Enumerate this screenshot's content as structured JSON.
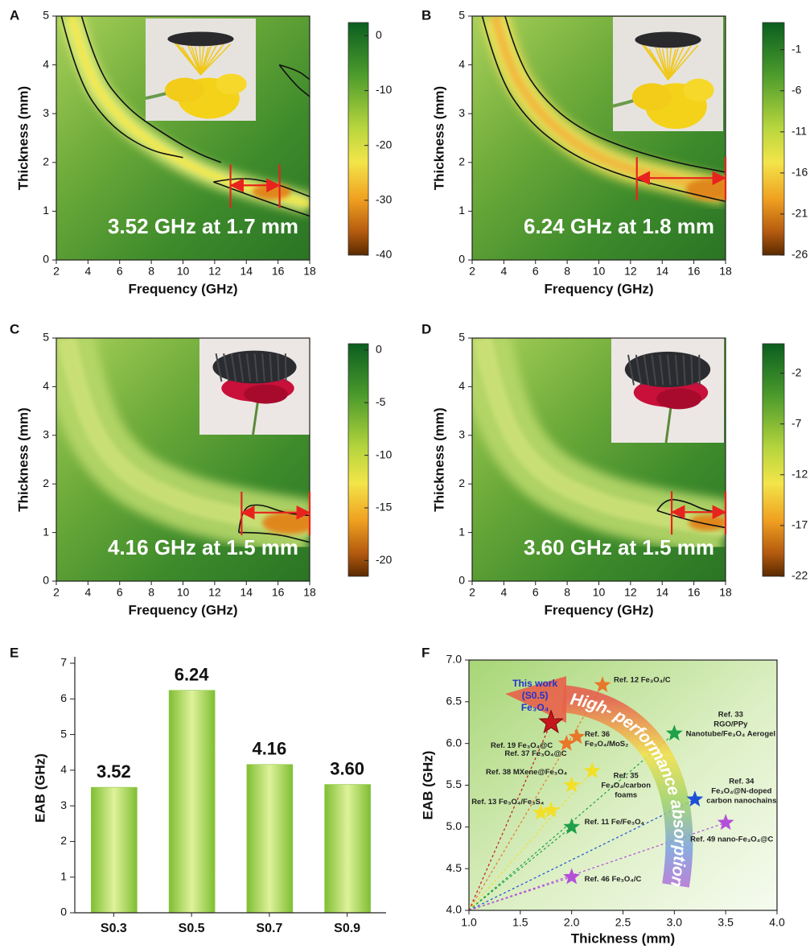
{
  "chart_data": [
    {
      "type": "heatmap",
      "panel": "A",
      "annotation": "3.52 GHz at 1.7 mm",
      "xlabel": "Frequency (GHz)",
      "ylabel": "Thickness (mm)",
      "xlim": [
        2,
        18
      ],
      "ylim": [
        0,
        5
      ],
      "xticks": [
        2,
        4,
        6,
        8,
        10,
        12,
        14,
        16,
        18
      ],
      "yticks": [
        0,
        1,
        2,
        3,
        4,
        5
      ],
      "colorbar": {
        "lim": [
          2.4,
          -40
        ],
        "ticks": [
          0,
          -10,
          -20,
          -30,
          -40
        ]
      },
      "arrow": {
        "x": [
          13.0,
          16.1
        ],
        "y": 1.53
      }
    },
    {
      "type": "heatmap",
      "panel": "B",
      "annotation": "6.24 GHz at 1.8 mm",
      "xlabel": "Frequency (GHz)",
      "ylabel": "Thickness (mm)",
      "xlim": [
        2,
        18
      ],
      "ylim": [
        0,
        5
      ],
      "xticks": [
        2,
        4,
        6,
        8,
        10,
        12,
        14,
        16,
        18
      ],
      "yticks": [
        0,
        1,
        2,
        3,
        4,
        5
      ],
      "colorbar": {
        "lim": [
          2.3,
          -26
        ],
        "ticks": [
          -1,
          -6,
          -11,
          -16,
          -21,
          -26
        ]
      },
      "arrow": {
        "x": [
          12.4,
          18
        ],
        "y": 1.68
      }
    },
    {
      "type": "heatmap",
      "panel": "C",
      "annotation": "4.16 GHz at 1.5 mm",
      "xlabel": "Frequency (GHz)",
      "ylabel": "Thickness (mm)",
      "xlim": [
        2,
        18
      ],
      "ylim": [
        0,
        5
      ],
      "xticks": [
        2,
        4,
        6,
        8,
        10,
        12,
        14,
        16,
        18
      ],
      "yticks": [
        0,
        1,
        2,
        3,
        4,
        5
      ],
      "colorbar": {
        "lim": [
          0.6,
          -21.5
        ],
        "ticks": [
          0,
          -5,
          -10,
          -15,
          -20
        ]
      },
      "arrow": {
        "x": [
          13.7,
          18
        ],
        "y": 1.41
      }
    },
    {
      "type": "heatmap",
      "panel": "D",
      "annotation": "3.60 GHz at 1.5 mm",
      "xlabel": "Frequency (GHz)",
      "ylabel": "Thickness (mm)",
      "xlim": [
        2,
        18
      ],
      "ylim": [
        0,
        5
      ],
      "xticks": [
        2,
        4,
        6,
        8,
        10,
        12,
        14,
        16,
        18
      ],
      "yticks": [
        0,
        1,
        2,
        3,
        4,
        5
      ],
      "colorbar": {
        "lim": [
          0.9,
          -22
        ],
        "ticks": [
          -2,
          -7,
          -12,
          -17,
          -22
        ]
      },
      "arrow": {
        "x": [
          14.6,
          18
        ],
        "y": 1.42
      }
    },
    {
      "type": "bar",
      "panel": "E",
      "ylabel": "EAB (GHz)",
      "categories": [
        "S0.3",
        "S0.5",
        "S0.7",
        "S0.9"
      ],
      "values": [
        3.52,
        6.24,
        4.16,
        3.6
      ],
      "value_labels": [
        "3.52",
        "6.24",
        "4.16",
        "3.60"
      ],
      "ylim": [
        0,
        7
      ],
      "yticks": [
        0,
        1,
        2,
        3,
        4,
        5,
        6,
        7
      ],
      "color": "#8cc63f"
    },
    {
      "type": "scatter",
      "panel": "F",
      "xlabel": "Thickness (mm)",
      "ylabel": "EAB (GHz)",
      "annotation": "High- performance absorption",
      "xlim": [
        1,
        4
      ],
      "ylim": [
        4,
        7
      ],
      "xticks": [
        {
          "value": 1,
          "label": "1.0"
        },
        1.5,
        {
          "value": 2,
          "label": "2.0"
        },
        2.5,
        {
          "value": 3,
          "label": "3.0"
        },
        3.5,
        {
          "value": 4,
          "label": "4.0"
        }
      ],
      "yticks": [
        {
          "value": 4,
          "label": "4.0"
        },
        4.5,
        {
          "value": 5,
          "label": "5.0"
        },
        5.5,
        {
          "value": 6,
          "label": "6.0"
        },
        6.5,
        {
          "value": 7,
          "label": "7.0"
        }
      ],
      "points": [
        {
          "label": [
            "This work",
            "(S0.5)",
            "Fe₃O₄"
          ],
          "x": 1.8,
          "y": 6.25,
          "color": "#c4161c"
        },
        {
          "label": [
            "Ref. 12 Fe₃O₄/C"
          ],
          "x": 2.3,
          "y": 6.7,
          "color": "#e8772a"
        },
        {
          "label": [
            "Ref. 36",
            "Fe₃O₄/MoS₂"
          ],
          "x": 2.05,
          "y": 6.08,
          "color": "#e8772a"
        },
        {
          "label": [
            "Ref. 19 Fe₃O₄@C"
          ],
          "x": 1.95,
          "y": 6.0,
          "color": "#e8772a"
        },
        {
          "label": [
            "Ref. 33",
            "RGO/PPy",
            "Nanotube/Fe₃O₄ Aerogel"
          ],
          "x": 3.0,
          "y": 6.12,
          "color": "#1fa049"
        },
        {
          "label": [
            "Ref. 35",
            "Fe₃O₄/carbon",
            "foams"
          ],
          "x": 2.2,
          "y": 5.67,
          "color": "#f2df27"
        },
        {
          "label": [
            "Ref. 37 Fe₃O₄@C"
          ],
          "x": 2.0,
          "y": 5.5,
          "color": "#f2df27"
        },
        {
          "label": [
            "Ref. 38 MXene@Fe₃O₄"
          ],
          "x": 1.8,
          "y": 5.2,
          "color": "#f2df27"
        },
        {
          "label": [
            "Ref. 13 Fe₃O₄/Fe₃S₄"
          ],
          "x": 1.7,
          "y": 5.17,
          "color": "#f2df27"
        },
        {
          "label": [
            "Ref. 11 Fe/Fe₃O₄"
          ],
          "x": 2.0,
          "y": 5.0,
          "color": "#1fa049"
        },
        {
          "label": [
            "Ref. 34",
            "Fe₃O₄@N-doped",
            "carbon nanochains"
          ],
          "x": 3.2,
          "y": 5.33,
          "color": "#1d4fd6"
        },
        {
          "label": [
            "Ref. 49 nano-Fe₃O₄@C"
          ],
          "x": 3.5,
          "y": 5.05,
          "color": "#b44fd8"
        },
        {
          "label": [
            "Ref. 46 Fe₃O₄/C"
          ],
          "x": 2.0,
          "y": 4.4,
          "color": "#b44fd8"
        }
      ]
    }
  ]
}
